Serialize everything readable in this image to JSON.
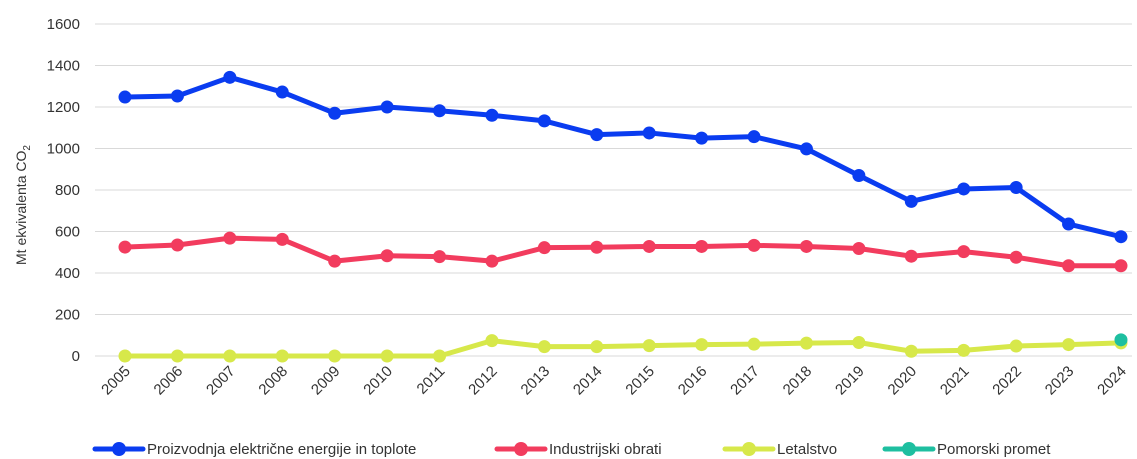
{
  "chart_data": {
    "type": "line",
    "x": [
      "2005",
      "2006",
      "2007",
      "2008",
      "2009",
      "2010",
      "2011",
      "2012",
      "2013",
      "2014",
      "2015",
      "2016",
      "2017",
      "2018",
      "2019",
      "2020",
      "2021",
      "2022",
      "2023",
      "2024"
    ],
    "ylabel_main": "Mt ekvivalenta CO",
    "ylabel_sub": "2",
    "ylim": [
      0,
      1600
    ],
    "yticks": [
      0,
      200,
      400,
      600,
      800,
      1000,
      1200,
      1400,
      1600
    ],
    "grid": true,
    "legend_position": "bottom",
    "series": [
      {
        "name": "Proizvodnja električne energije in toplote",
        "color": "#0a3cf0",
        "values": [
          1248,
          1253,
          1343,
          1272,
          1170,
          1200,
          1182,
          1160,
          1133,
          1067,
          1075,
          1050,
          1057,
          998,
          870,
          745,
          805,
          812,
          636,
          575
        ]
      },
      {
        "name": "Industrijski obrati",
        "color": "#f23c5e",
        "values": [
          525,
          535,
          568,
          562,
          457,
          483,
          479,
          457,
          522,
          524,
          528,
          528,
          533,
          528,
          518,
          481,
          503,
          476,
          435,
          435
        ]
      },
      {
        "name": "Letalstvo",
        "color": "#d7e84a",
        "values": [
          0,
          0,
          0,
          0,
          0,
          0,
          0,
          74,
          45,
          45,
          50,
          55,
          57,
          62,
          65,
          23,
          27,
          48,
          55,
          63
        ]
      },
      {
        "name": "Pomorski promet",
        "color": "#1ebfa0",
        "values": [
          null,
          null,
          null,
          null,
          null,
          null,
          null,
          null,
          null,
          null,
          null,
          null,
          null,
          null,
          null,
          null,
          null,
          null,
          null,
          78
        ]
      }
    ]
  }
}
